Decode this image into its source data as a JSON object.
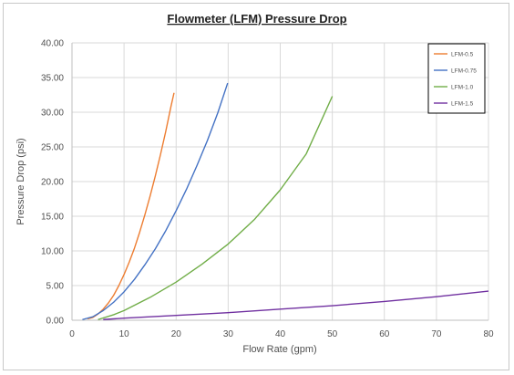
{
  "chart_data": {
    "type": "line",
    "title": "Flowmeter (LFM) Pressure Drop",
    "xlabel": "Flow Rate (gpm)",
    "ylabel": "Pressure Drop (psi)",
    "xlim": [
      0,
      80
    ],
    "ylim": [
      0,
      40
    ],
    "x_ticks": [
      "0",
      "10",
      "20",
      "30",
      "40",
      "50",
      "60",
      "70",
      "80"
    ],
    "y_ticks": [
      "0.00",
      "5.00",
      "10.00",
      "15.00",
      "20.00",
      "25.00",
      "30.00",
      "35.00",
      "40.00"
    ],
    "grid": true,
    "legend_position": "top-right",
    "series": [
      {
        "name": "LFM-0.5",
        "color": "#ED7D31",
        "points": [
          [
            3,
            0.2
          ],
          [
            4,
            0.4
          ],
          [
            5,
            0.9
          ],
          [
            6,
            1.6
          ],
          [
            7,
            2.5
          ],
          [
            8,
            3.6
          ],
          [
            9,
            5.0
          ],
          [
            10,
            6.6
          ],
          [
            11,
            8.4
          ],
          [
            12,
            10.4
          ],
          [
            13,
            12.7
          ],
          [
            14,
            15.2
          ],
          [
            15,
            17.9
          ],
          [
            16,
            20.8
          ],
          [
            17,
            23.9
          ],
          [
            18,
            27.2
          ],
          [
            19,
            30.8
          ],
          [
            19.6,
            32.8
          ]
        ]
      },
      {
        "name": "LFM-0.75",
        "color": "#4472C4",
        "points": [
          [
            2,
            0.1
          ],
          [
            4,
            0.5
          ],
          [
            6,
            1.4
          ],
          [
            8,
            2.6
          ],
          [
            10,
            4.1
          ],
          [
            12,
            5.9
          ],
          [
            14,
            8.0
          ],
          [
            16,
            10.3
          ],
          [
            18,
            12.9
          ],
          [
            20,
            15.8
          ],
          [
            22,
            18.9
          ],
          [
            24,
            22.3
          ],
          [
            26,
            25.9
          ],
          [
            28,
            29.9
          ],
          [
            29.9,
            34.2
          ]
        ]
      },
      {
        "name": "LFM-1.0",
        "color": "#70AD47",
        "points": [
          [
            5,
            0.1
          ],
          [
            8,
            0.8
          ],
          [
            10,
            1.4
          ],
          [
            15,
            3.3
          ],
          [
            20,
            5.5
          ],
          [
            25,
            8.1
          ],
          [
            30,
            11.0
          ],
          [
            35,
            14.5
          ],
          [
            40,
            18.8
          ],
          [
            45,
            24.0
          ],
          [
            50,
            32.3
          ]
        ]
      },
      {
        "name": "LFM-1.5",
        "color": "#7030A0",
        "points": [
          [
            6,
            0.1
          ],
          [
            10,
            0.3
          ],
          [
            20,
            0.7
          ],
          [
            30,
            1.1
          ],
          [
            40,
            1.6
          ],
          [
            50,
            2.1
          ],
          [
            60,
            2.7
          ],
          [
            70,
            3.4
          ],
          [
            80,
            4.2
          ]
        ]
      }
    ]
  }
}
